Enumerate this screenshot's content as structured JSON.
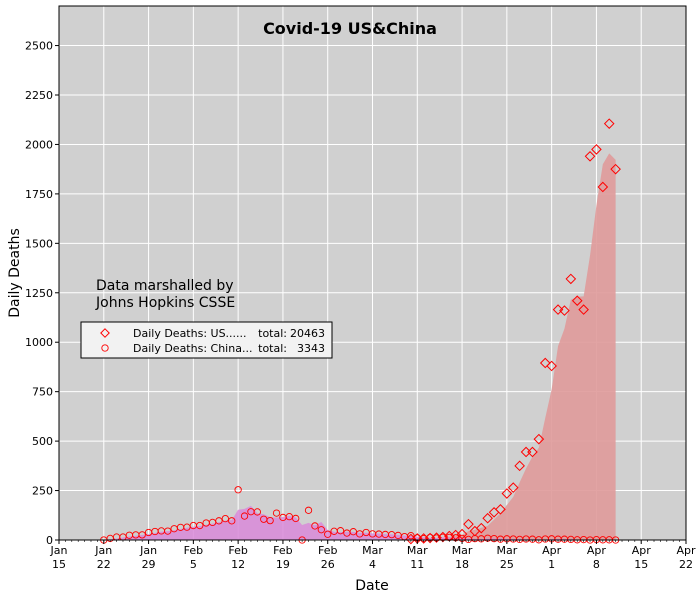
{
  "chart_data": {
    "type": "scatter",
    "title": "Covid-19 US&China",
    "xlabel": "Date",
    "ylabel": "Daily Deaths",
    "ylim": [
      0,
      2700
    ],
    "xlim": [
      "2020-01-15",
      "2020-04-22"
    ],
    "grid": true,
    "legend_position": "left",
    "annotation": [
      "Data marshalled by",
      "Johns Hopkins CSSE"
    ],
    "colors": {
      "background": "#d0d0d0",
      "grid": "#ffffff",
      "marker": "#ff0000",
      "us_fill": "#df9a9a",
      "china_fill": "#d98ad9"
    },
    "x_ticks": [
      {
        "date": "2020-01-15",
        "month": "Jan",
        "day": "15"
      },
      {
        "date": "2020-01-22",
        "month": "Jan",
        "day": "22"
      },
      {
        "date": "2020-01-29",
        "month": "Jan",
        "day": "29"
      },
      {
        "date": "2020-02-05",
        "month": "Feb",
        "day": "5"
      },
      {
        "date": "2020-02-12",
        "month": "Feb",
        "day": "12"
      },
      {
        "date": "2020-02-19",
        "month": "Feb",
        "day": "19"
      },
      {
        "date": "2020-02-26",
        "month": "Feb",
        "day": "26"
      },
      {
        "date": "2020-03-04",
        "month": "Mar",
        "day": "4"
      },
      {
        "date": "2020-03-11",
        "month": "Mar",
        "day": "11"
      },
      {
        "date": "2020-03-18",
        "month": "Mar",
        "day": "18"
      },
      {
        "date": "2020-03-25",
        "month": "Mar",
        "day": "25"
      },
      {
        "date": "2020-04-01",
        "month": "Apr",
        "day": "1"
      },
      {
        "date": "2020-04-08",
        "month": "Apr",
        "day": "8"
      },
      {
        "date": "2020-04-15",
        "month": "Apr",
        "day": "15"
      },
      {
        "date": "2020-04-22",
        "month": "Apr",
        "day": "22"
      }
    ],
    "y_ticks": [
      0,
      250,
      500,
      750,
      1000,
      1250,
      1500,
      1750,
      2000,
      2250,
      2500
    ],
    "series": [
      {
        "name": "Daily Deaths: US......",
        "total_label": "total:",
        "total": "20463",
        "marker": "diamond",
        "color": "#ff0000",
        "x": [
          "2020-03-10",
          "2020-03-11",
          "2020-03-12",
          "2020-03-13",
          "2020-03-14",
          "2020-03-15",
          "2020-03-16",
          "2020-03-17",
          "2020-03-18",
          "2020-03-19",
          "2020-03-20",
          "2020-03-21",
          "2020-03-22",
          "2020-03-23",
          "2020-03-24",
          "2020-03-25",
          "2020-03-26",
          "2020-03-27",
          "2020-03-28",
          "2020-03-29",
          "2020-03-30",
          "2020-03-31",
          "2020-04-01",
          "2020-04-02",
          "2020-04-03",
          "2020-04-04",
          "2020-04-05",
          "2020-04-06",
          "2020-04-07",
          "2020-04-08",
          "2020-04-09",
          "2020-04-10",
          "2020-04-11"
        ],
        "y": [
          5,
          8,
          8,
          10,
          12,
          15,
          20,
          25,
          30,
          80,
          45,
          60,
          110,
          140,
          155,
          235,
          265,
          375,
          445,
          445,
          510,
          895,
          880,
          1165,
          1160,
          1320,
          1210,
          1165,
          1940,
          1975,
          1785,
          2105,
          1875
        ]
      },
      {
        "name": "Daily Deaths: China...",
        "total_label": "total:",
        "total": "3343",
        "marker": "circle",
        "color": "#ff0000",
        "x": [
          "2020-01-22",
          "2020-01-23",
          "2020-01-24",
          "2020-01-25",
          "2020-01-26",
          "2020-01-27",
          "2020-01-28",
          "2020-01-29",
          "2020-01-30",
          "2020-01-31",
          "2020-02-01",
          "2020-02-02",
          "2020-02-03",
          "2020-02-04",
          "2020-02-05",
          "2020-02-06",
          "2020-02-07",
          "2020-02-08",
          "2020-02-09",
          "2020-02-10",
          "2020-02-11",
          "2020-02-12",
          "2020-02-13",
          "2020-02-14",
          "2020-02-15",
          "2020-02-16",
          "2020-02-17",
          "2020-02-18",
          "2020-02-19",
          "2020-02-20",
          "2020-02-21",
          "2020-02-22",
          "2020-02-23",
          "2020-02-24",
          "2020-02-25",
          "2020-02-26",
          "2020-02-27",
          "2020-02-28",
          "2020-02-29",
          "2020-03-01",
          "2020-03-02",
          "2020-03-03",
          "2020-03-04",
          "2020-03-05",
          "2020-03-06",
          "2020-03-07",
          "2020-03-08",
          "2020-03-09",
          "2020-03-10",
          "2020-03-11",
          "2020-03-12",
          "2020-03-13",
          "2020-03-14",
          "2020-03-15",
          "2020-03-16",
          "2020-03-17",
          "2020-03-18",
          "2020-03-19",
          "2020-03-20",
          "2020-03-21",
          "2020-03-22",
          "2020-03-23",
          "2020-03-24",
          "2020-03-25",
          "2020-03-26",
          "2020-03-27",
          "2020-03-28",
          "2020-03-29",
          "2020-03-30",
          "2020-03-31",
          "2020-04-01",
          "2020-04-02",
          "2020-04-03",
          "2020-04-04",
          "2020-04-05",
          "2020-04-06",
          "2020-04-07",
          "2020-04-08",
          "2020-04-09",
          "2020-04-10",
          "2020-04-11"
        ],
        "y": [
          0,
          8,
          15,
          15,
          24,
          26,
          26,
          38,
          43,
          46,
          45,
          57,
          64,
          65,
          73,
          73,
          86,
          89,
          97,
          108,
          97,
          254,
          121,
          143,
          142,
          105,
          98,
          136,
          114,
          118,
          109,
          0,
          150,
          71,
          52,
          29,
          44,
          47,
          35,
          42,
          31,
          38,
          31,
          30,
          28,
          27,
          23,
          17,
          22,
          11,
          7,
          13,
          10,
          14,
          13,
          11,
          8,
          3,
          7,
          6,
          9,
          7,
          4,
          6,
          5,
          3,
          5,
          4,
          1,
          5,
          6,
          4,
          4,
          3,
          1,
          2,
          0,
          2,
          1,
          1,
          0
        ]
      }
    ]
  }
}
